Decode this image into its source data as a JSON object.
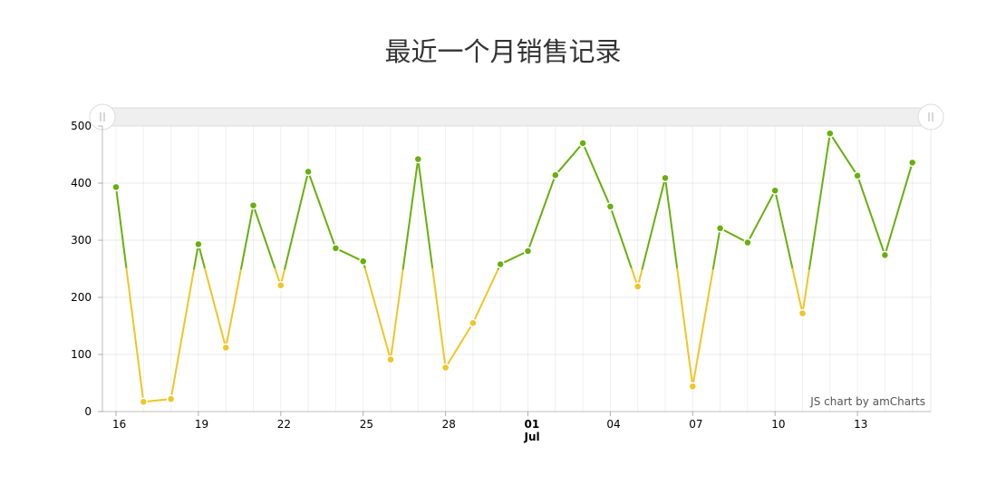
{
  "chart_data": {
    "type": "line",
    "title": "最近一个月销售记录",
    "credit": "JS chart by amCharts",
    "ylim": [
      0,
      500
    ],
    "y_ticks": [
      0,
      100,
      200,
      300,
      400,
      500
    ],
    "threshold": 250,
    "colors": {
      "above": "#67b00b",
      "below": "#f0c525"
    },
    "x_ticks": [
      {
        "index": 0,
        "label": "16"
      },
      {
        "index": 3,
        "label": "19"
      },
      {
        "index": 6,
        "label": "22"
      },
      {
        "index": 9,
        "label": "25"
      },
      {
        "index": 12,
        "label": "28"
      },
      {
        "index": 15,
        "label": "01",
        "sublabel": "Jul",
        "bold": true
      },
      {
        "index": 18,
        "label": "04"
      },
      {
        "index": 21,
        "label": "07"
      },
      {
        "index": 24,
        "label": "10"
      },
      {
        "index": 27,
        "label": "13"
      }
    ],
    "series": [
      {
        "x": [
          "06-16",
          "06-17",
          "06-18",
          "06-19",
          "06-20",
          "06-21",
          "06-22",
          "06-23",
          "06-24",
          "06-25",
          "06-26",
          "06-27",
          "06-28",
          "06-29",
          "06-30",
          "07-01",
          "07-02",
          "07-03",
          "07-04",
          "07-05",
          "07-06",
          "07-07",
          "07-08",
          "07-09",
          "07-10",
          "07-11",
          "07-12",
          "07-13",
          "07-14",
          "07-15"
        ],
        "values": [
          393,
          17,
          22,
          293,
          112,
          361,
          221,
          420,
          286,
          263,
          91,
          442,
          77,
          155,
          258,
          281,
          414,
          470,
          359,
          219,
          409,
          44,
          321,
          296,
          387,
          172,
          487,
          413,
          274,
          436
        ]
      }
    ],
    "scrollbar": {
      "start": 0,
      "end": 1
    }
  }
}
